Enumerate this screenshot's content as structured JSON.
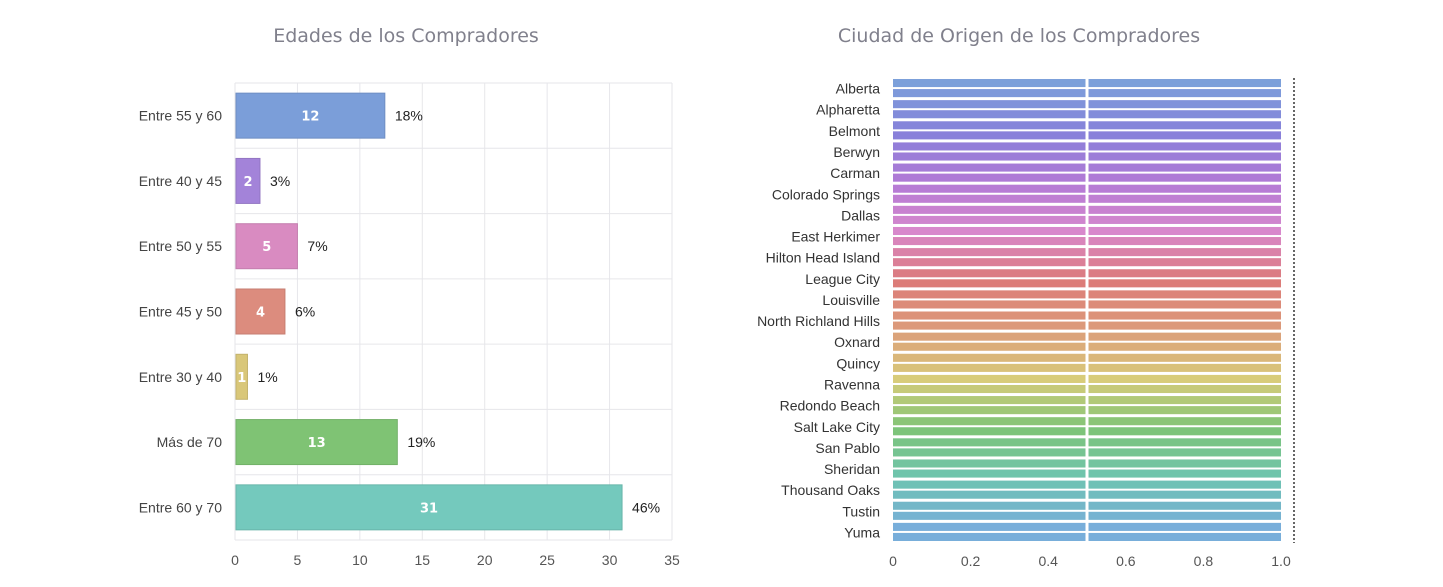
{
  "chart_data": [
    {
      "type": "bar",
      "orientation": "horizontal",
      "title": "Edades de los Compradores",
      "categories": [
        "Entre 55 y 60",
        "Entre 40 y 45",
        "Entre 50 y 55",
        "Entre 45 y 50",
        "Entre 30 y 40",
        "Más de 70",
        "Entre 60 y 70"
      ],
      "values": [
        12,
        2,
        5,
        4,
        1,
        13,
        31
      ],
      "percent_labels": [
        "18%",
        "3%",
        "7%",
        "6%",
        "1%",
        "19%",
        "46%"
      ],
      "colors": [
        "#7b9ed9",
        "#a383d9",
        "#d98bc1",
        "#dc8c7e",
        "#d9c779",
        "#7fc374",
        "#74c9bd"
      ],
      "xlim": [
        0,
        35
      ],
      "xticks": [
        "0",
        "5",
        "10",
        "15",
        "20",
        "25",
        "30",
        "35"
      ],
      "grid": true
    },
    {
      "type": "bar",
      "orientation": "horizontal",
      "stacked": true,
      "title": "Ciudad de Origen de los Compradores",
      "categories": [
        "Alberta",
        "Alpharetta",
        "Belmont",
        "Berwyn",
        "Carman",
        "Colorado Springs",
        "Dallas",
        "East Herkimer",
        "Hilton Head Island",
        "League City",
        "Louisville",
        "North Richland Hills",
        "Oxnard",
        "Quincy",
        "Ravenna",
        "Redondo Beach",
        "Salt Lake City",
        "San Pablo",
        "Sheridan",
        "Thousand Oaks",
        "Tustin",
        "Yuma"
      ],
      "values": [
        1,
        1,
        1,
        1,
        1,
        1,
        1,
        1,
        1,
        1,
        1,
        1,
        1,
        1,
        1,
        1,
        1,
        1,
        1,
        1,
        1,
        1
      ],
      "xlim": [
        0,
        1.0
      ],
      "xticks": [
        "0",
        "0.2",
        "0.4",
        "0.6",
        "0.8",
        "1.0"
      ],
      "grid": false
    }
  ]
}
